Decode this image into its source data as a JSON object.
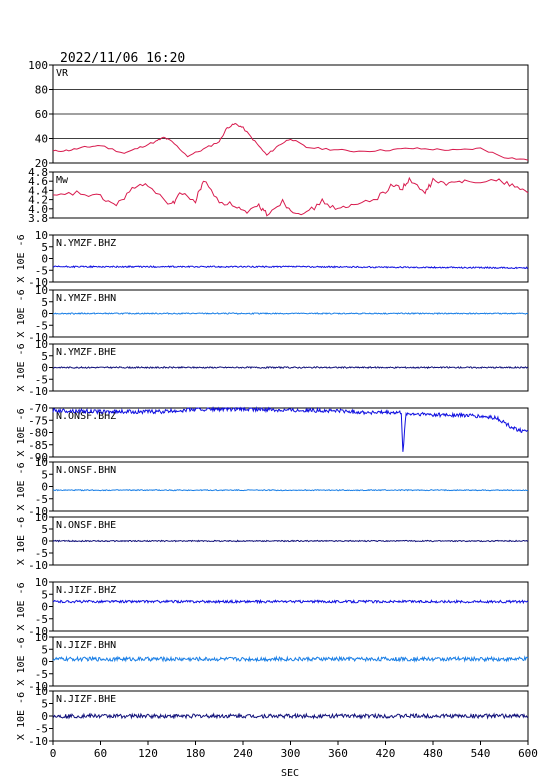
{
  "title": "2022/11/06  16:20",
  "xlabel": "SEC",
  "ylabel_units": "X 10E -6",
  "x_ticks": [
    "0",
    "60",
    "120",
    "180",
    "240",
    "300",
    "360",
    "420",
    "480",
    "540",
    "600"
  ],
  "colors": {
    "red": "#d81b4e",
    "blue": "#1010e0",
    "lightblue": "#1a7fe6",
    "navy": "#10107a"
  },
  "chart_data": [
    {
      "type": "line",
      "label": "VR",
      "xlim": [
        0,
        600
      ],
      "ylim": [
        0,
        100
      ],
      "yticks": [
        "100",
        "80",
        "60",
        "40",
        "20"
      ],
      "grid": true,
      "color": "red",
      "x": [
        0,
        20,
        40,
        60,
        90,
        110,
        130,
        140,
        150,
        170,
        190,
        210,
        220,
        230,
        240,
        255,
        270,
        285,
        300,
        320,
        350,
        380,
        420,
        450,
        480,
        510,
        540,
        570,
        600
      ],
      "y": [
        12,
        13,
        16,
        18,
        10,
        16,
        22,
        26,
        22,
        7,
        14,
        22,
        36,
        40,
        36,
        22,
        8,
        18,
        25,
        16,
        14,
        12,
        13,
        15,
        14,
        13,
        15,
        6,
        3
      ]
    },
    {
      "type": "line",
      "label": "Mw",
      "xlim": [
        0,
        600
      ],
      "ylim": [
        3.7,
        4.8
      ],
      "yticks": [
        "4.8",
        "4.6",
        "4.4",
        "4.2",
        "4.0",
        "3.8"
      ],
      "grid": false,
      "color": "red",
      "x": [
        0,
        30,
        60,
        80,
        100,
        120,
        150,
        160,
        180,
        190,
        210,
        230,
        245,
        260,
        270,
        290,
        300,
        320,
        340,
        360,
        380,
        410,
        430,
        440,
        450,
        470,
        480,
        500,
        520,
        560,
        580,
        600
      ],
      "y": [
        4.2,
        4.3,
        4.2,
        4.0,
        4.4,
        4.5,
        4.0,
        4.3,
        4.1,
        4.6,
        4.1,
        4.0,
        3.8,
        4.0,
        3.8,
        4.1,
        3.9,
        3.8,
        4.1,
        3.9,
        4.0,
        4.2,
        4.5,
        4.4,
        4.6,
        4.3,
        4.6,
        4.5,
        4.6,
        4.6,
        4.5,
        4.3
      ]
    },
    {
      "type": "line",
      "label": "N.YMZF.BHZ",
      "xlim": [
        0,
        600
      ],
      "ylim": [
        -10,
        10
      ],
      "yticks": [
        "10",
        "5",
        "0",
        "-5",
        "-10"
      ],
      "color": "blue",
      "base": [
        -3.5,
        -3.5,
        -4.0
      ],
      "noise": 0.3
    },
    {
      "type": "line",
      "label": "N.YMZF.BHN",
      "xlim": [
        0,
        600
      ],
      "ylim": [
        -10,
        10
      ],
      "yticks": [
        "10",
        "5",
        "0",
        "-5",
        "-10"
      ],
      "color": "lightblue",
      "base": [
        0,
        0,
        0
      ],
      "noise": 0.25
    },
    {
      "type": "line",
      "label": "N.YMZF.BHE",
      "xlim": [
        0,
        600
      ],
      "ylim": [
        -10,
        10
      ],
      "yticks": [
        "10",
        "5",
        "0",
        "-5",
        "-10"
      ],
      "color": "navy",
      "base": [
        0,
        0,
        0
      ],
      "noise": 0.3
    },
    {
      "type": "line",
      "label": "N.ONSF.BHZ",
      "xlim": [
        0,
        600
      ],
      "ylim": [
        -90,
        -70
      ],
      "yticks": [
        "-70",
        "-75",
        "-80",
        "-85",
        "-90"
      ],
      "color": "blue",
      "x": [
        0,
        60,
        140,
        180,
        240,
        300,
        360,
        400,
        440,
        442,
        446,
        448,
        460,
        520,
        560,
        580,
        600
      ],
      "y": [
        -71,
        -71.5,
        -71.5,
        -70.5,
        -70.5,
        -70.8,
        -71.2,
        -71.8,
        -72,
        -88,
        -72,
        -72.5,
        -72.5,
        -73,
        -74,
        -78,
        -80
      ],
      "noise": 0.8
    },
    {
      "type": "line",
      "label": "N.ONSF.BHN",
      "xlim": [
        0,
        600
      ],
      "ylim": [
        -10,
        10
      ],
      "yticks": [
        "10",
        "5",
        "0",
        "-5",
        "-10"
      ],
      "color": "lightblue",
      "base": [
        -1.5,
        -1.5,
        -1.5
      ],
      "noise": 0.2
    },
    {
      "type": "line",
      "label": "N.ONSF.BHE",
      "xlim": [
        0,
        600
      ],
      "ylim": [
        -10,
        10
      ],
      "yticks": [
        "10",
        "5",
        "0",
        "-5",
        "-10"
      ],
      "color": "navy",
      "base": [
        0,
        0,
        0
      ],
      "noise": 0.25
    },
    {
      "type": "line",
      "label": "N.JIZF.BHZ",
      "xlim": [
        0,
        600
      ],
      "ylim": [
        -10,
        10
      ],
      "yticks": [
        "10",
        "5",
        "0",
        "-5",
        "-10"
      ],
      "color": "blue",
      "base": [
        2,
        2,
        2
      ],
      "noise": 0.5
    },
    {
      "type": "line",
      "label": "N.JIZF.BHN",
      "xlim": [
        0,
        600
      ],
      "ylim": [
        -10,
        10
      ],
      "yticks": [
        "10",
        "5",
        "0",
        "-5",
        "-10"
      ],
      "color": "lightblue",
      "base": [
        1,
        1,
        1
      ],
      "noise": 0.8
    },
    {
      "type": "line",
      "label": "N.JIZF.BHE",
      "xlim": [
        0,
        600
      ],
      "ylim": [
        -10,
        10
      ],
      "yticks": [
        "10",
        "5",
        "0",
        "-5",
        "-10"
      ],
      "color": "navy",
      "base": [
        0,
        0,
        0
      ],
      "noise": 0.8
    }
  ]
}
